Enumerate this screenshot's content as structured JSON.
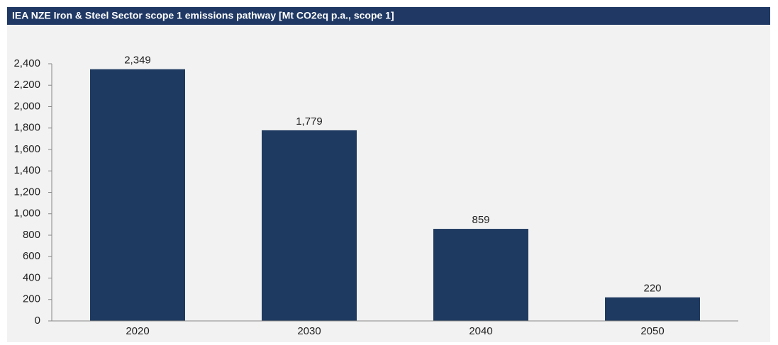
{
  "chart_data": {
    "type": "bar",
    "title": "IEA NZE Iron & Steel Sector scope 1 emissions pathway [Mt CO2eq p.a., scope 1]",
    "categories": [
      "2020",
      "2030",
      "2040",
      "2050"
    ],
    "values": [
      2349,
      1779,
      859,
      220
    ],
    "value_labels": [
      "2,349",
      "1,779",
      "859",
      "220"
    ],
    "color": "#1f3a60",
    "ylim": [
      0,
      2400
    ],
    "yticks": [
      0,
      200,
      400,
      600,
      800,
      {
        "value": 1000,
        "label": "1,000"
      },
      {
        "value": 1200,
        "label": "1,200"
      },
      {
        "value": 1400,
        "label": "1,400"
      },
      {
        "value": 1600,
        "label": "1,600"
      },
      {
        "value": 1800,
        "label": "1,800"
      },
      {
        "value": 2000,
        "label": "2,000"
      },
      {
        "value": 2200,
        "label": "2,200"
      },
      {
        "value": 2400,
        "label": "2,400"
      }
    ]
  }
}
